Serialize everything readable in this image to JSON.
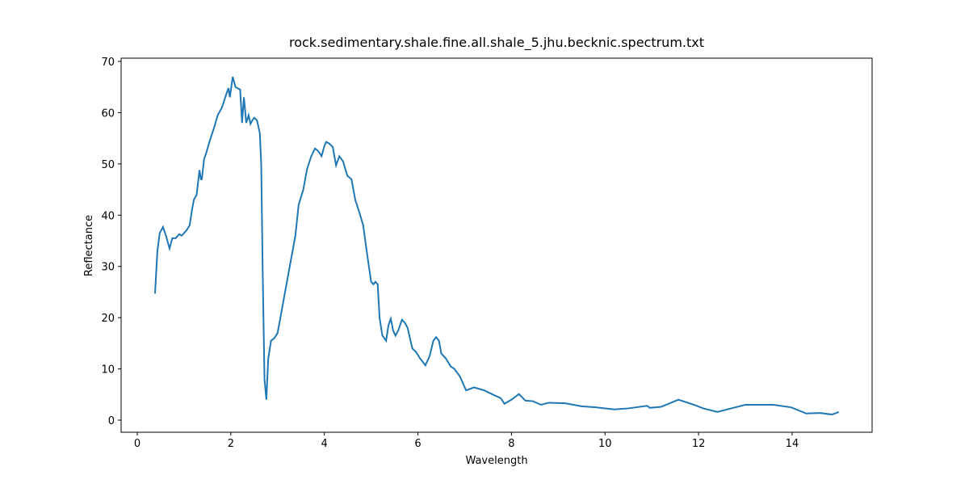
{
  "chart_data": {
    "type": "line",
    "title": "rock.sedimentary.shale.fine.all.shale_5.jhu.becknic.spectrum.txt",
    "x_label": "Wavelength",
    "y_label": "Reflectance",
    "x": [
      0.38,
      0.43,
      0.48,
      0.55,
      0.62,
      0.69,
      0.75,
      0.82,
      0.9,
      0.95,
      1.05,
      1.12,
      1.17,
      1.21,
      1.27,
      1.33,
      1.36,
      1.38,
      1.43,
      1.47,
      1.55,
      1.64,
      1.72,
      1.81,
      1.9,
      1.95,
      1.98,
      2.04,
      2.1,
      2.2,
      2.24,
      2.28,
      2.33,
      2.38,
      2.42,
      2.46,
      2.5,
      2.56,
      2.62,
      2.65,
      2.68,
      2.72,
      2.76,
      2.8,
      2.86,
      2.93,
      3.0,
      3.1,
      3.2,
      3.28,
      3.38,
      3.45,
      3.55,
      3.63,
      3.72,
      3.8,
      3.87,
      3.94,
      4.0,
      4.04,
      4.1,
      4.18,
      4.25,
      4.32,
      4.4,
      4.49,
      4.58,
      4.66,
      4.75,
      4.83,
      4.92,
      5.0,
      5.05,
      5.09,
      5.14,
      5.18,
      5.24,
      5.32,
      5.37,
      5.42,
      5.47,
      5.52,
      5.58,
      5.66,
      5.72,
      5.78,
      5.88,
      5.96,
      6.05,
      6.16,
      6.25,
      6.33,
      6.39,
      6.45,
      6.5,
      6.6,
      6.7,
      6.78,
      6.9,
      7.03,
      7.2,
      7.42,
      7.6,
      7.77,
      7.85,
      8.0,
      8.16,
      8.3,
      8.46,
      8.63,
      8.8,
      9.15,
      9.5,
      9.8,
      10.2,
      10.5,
      10.9,
      10.96,
      11.2,
      11.57,
      11.9,
      12.1,
      12.4,
      12.7,
      13.0,
      13.3,
      13.6,
      13.98,
      14.3,
      14.6,
      14.85,
      15.0
    ],
    "series": [
      {
        "name": "Reflectance",
        "color": "#1f77b4",
        "values": [
          24.7,
          33,
          36.5,
          37.7,
          35.8,
          33.5,
          35.5,
          35.5,
          36.3,
          36,
          37,
          38,
          41,
          43,
          44,
          48.8,
          47,
          47,
          51,
          52,
          54.5,
          57,
          59.5,
          61,
          63.5,
          64.8,
          63,
          67,
          65,
          64.5,
          58,
          63,
          58,
          59.5,
          57.8,
          58.5,
          59,
          58.5,
          56,
          50,
          30,
          8,
          4,
          12,
          15.5,
          16,
          17,
          22,
          27,
          31,
          36,
          42,
          45,
          49,
          51.5,
          53,
          52.5,
          51.5,
          53.5,
          54.3,
          54,
          53.3,
          49.7,
          51.5,
          50.5,
          47.7,
          47,
          43,
          40.5,
          38,
          32,
          27,
          26.5,
          27,
          26.5,
          20,
          16.5,
          15.5,
          18.5,
          19.8,
          17.5,
          16.5,
          17.5,
          19.6,
          19,
          18,
          14,
          13.3,
          12,
          10.7,
          12.5,
          15.5,
          16.2,
          15.5,
          13,
          12,
          10.5,
          10,
          8.5,
          5.8,
          6.4,
          5.8,
          5,
          4.3,
          3.2,
          4,
          5.1,
          3.8,
          3.7,
          3,
          3.4,
          3.3,
          2.7,
          2.5,
          2.1,
          2.3,
          2.8,
          2.4,
          2.6,
          4,
          3,
          2.3,
          1.6,
          2.3,
          3,
          3,
          3,
          2.5,
          1.3,
          1.4,
          1.1,
          1.6
        ]
      }
    ],
    "xlim": [
      -0.345,
      15.71
    ],
    "ylim": [
      -2.36,
      70.63
    ],
    "xticks": [
      0,
      2,
      4,
      6,
      8,
      10,
      12,
      14
    ],
    "yticks": [
      0,
      10,
      20,
      30,
      40,
      50,
      60,
      70
    ]
  }
}
